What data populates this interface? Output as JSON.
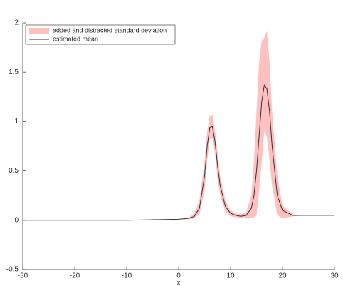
{
  "chart_data": {
    "type": "line",
    "x_label": "x",
    "x": [
      -30,
      -20,
      -10,
      0,
      2,
      3,
      4,
      5,
      5.5,
      6,
      6.5,
      7,
      7.5,
      8,
      9,
      10,
      11,
      12,
      13,
      14,
      14.5,
      15,
      15.5,
      16,
      16.5,
      17,
      17.5,
      18,
      19,
      20,
      22,
      25,
      30
    ],
    "band": {
      "name": "added and distracted standard deviation",
      "color": "#ffc0c0",
      "upper": [
        0,
        0,
        0,
        0.01,
        0.03,
        0.07,
        0.2,
        0.6,
        0.9,
        1.06,
        1.07,
        0.92,
        0.68,
        0.45,
        0.2,
        0.1,
        0.07,
        0.06,
        0.08,
        0.25,
        0.6,
        1.1,
        1.6,
        1.82,
        1.85,
        1.92,
        1.6,
        1.1,
        0.45,
        0.15,
        0.06,
        0.05,
        0.05
      ],
      "lower": [
        0,
        0,
        0,
        0.01,
        0.01,
        0.02,
        0.06,
        0.3,
        0.6,
        0.82,
        0.83,
        0.68,
        0.42,
        0.25,
        0.09,
        0.04,
        0.03,
        0.02,
        0.02,
        0.02,
        0.03,
        0.05,
        0.3,
        0.6,
        0.9,
        0.85,
        0.6,
        0.35,
        0.05,
        0.02,
        0.04,
        0.05,
        0.05
      ]
    },
    "series": [
      {
        "name": "estimated mean",
        "color": "#333333",
        "values": [
          0,
          0,
          0,
          0.01,
          0.02,
          0.04,
          0.12,
          0.45,
          0.75,
          0.94,
          0.95,
          0.8,
          0.55,
          0.35,
          0.14,
          0.07,
          0.05,
          0.04,
          0.05,
          0.12,
          0.25,
          0.5,
          0.85,
          1.2,
          1.37,
          1.33,
          1.1,
          0.75,
          0.25,
          0.1,
          0.05,
          0.05,
          0.05
        ]
      }
    ],
    "xlim": [
      -30,
      30
    ],
    "xticks": [
      -30,
      -20,
      -10,
      0,
      10,
      20,
      30
    ],
    "ylim": [
      -0.5,
      2
    ],
    "yticks": [
      -0.5,
      0,
      0.5,
      1,
      1.5,
      2
    ],
    "grid": false,
    "legend": "northwest"
  }
}
